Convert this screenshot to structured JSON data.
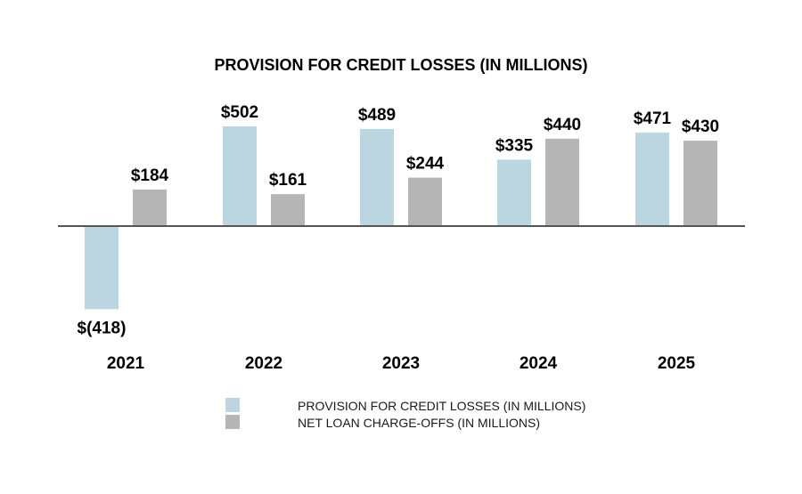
{
  "chart_data": {
    "type": "bar",
    "title": "PROVISION FOR CREDIT LOSSES (IN MILLIONS)",
    "categories": [
      "2021",
      "2022",
      "2023",
      "2024",
      "2025"
    ],
    "series": [
      {
        "name": "PROVISION FOR CREDIT LOSSES (IN MILLIONS)",
        "color": "#bcd6e1",
        "values": [
          -418,
          502,
          489,
          335,
          471
        ],
        "labels": [
          "$(418)",
          "$502",
          "$489",
          "$335",
          "$471"
        ]
      },
      {
        "name": "NET LOAN CHARGE-OFFS (IN MILLIONS)",
        "color": "#b5b5b5",
        "values": [
          184,
          161,
          244,
          440,
          430
        ],
        "labels": [
          "$184",
          "$161",
          "$244",
          "$440",
          "$430"
        ]
      }
    ],
    "xlabel": "",
    "ylabel": "",
    "ylim": [
      -418,
      502
    ],
    "grid": false,
    "axis_color": "#555555",
    "legend_position": "bottom"
  }
}
